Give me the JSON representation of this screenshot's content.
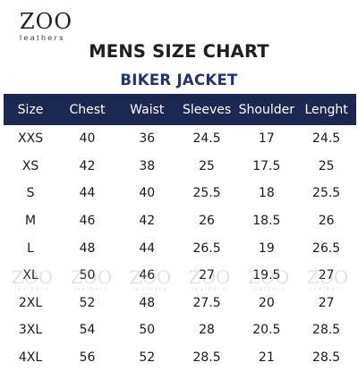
{
  "brand": {
    "mark": "ZOO",
    "sub": "leathers"
  },
  "title": "MENS SIZE CHART",
  "subtitle": "BIKER JACKET",
  "table": {
    "headers": [
      "Size",
      "Chest",
      "Waist",
      "Sleeves",
      "Shoulder",
      "Lenght"
    ],
    "rows": [
      [
        "XXS",
        "40",
        "36",
        "24.5",
        "17",
        "24.5"
      ],
      [
        "XS",
        "42",
        "38",
        "25",
        "17.5",
        "25"
      ],
      [
        "S",
        "44",
        "40",
        "25.5",
        "18",
        "25.5"
      ],
      [
        "M",
        "46",
        "42",
        "26",
        "18.5",
        "26"
      ],
      [
        "L",
        "48",
        "44",
        "26.5",
        "19",
        "26.5"
      ],
      [
        "XL",
        "50",
        "46",
        "27",
        "19.5",
        "27"
      ],
      [
        "2XL",
        "52",
        "48",
        "27.5",
        "20",
        "27"
      ],
      [
        "3XL",
        "54",
        "50",
        "28",
        "20.5",
        "28.5"
      ],
      [
        "4XL",
        "56",
        "52",
        "28.5",
        "21",
        "28.5"
      ]
    ]
  },
  "watermark": {
    "mark": "ZOO",
    "sub": "leathers"
  },
  "colors": {
    "header_bg": "#1d2852",
    "subtitle": "#24346b"
  }
}
